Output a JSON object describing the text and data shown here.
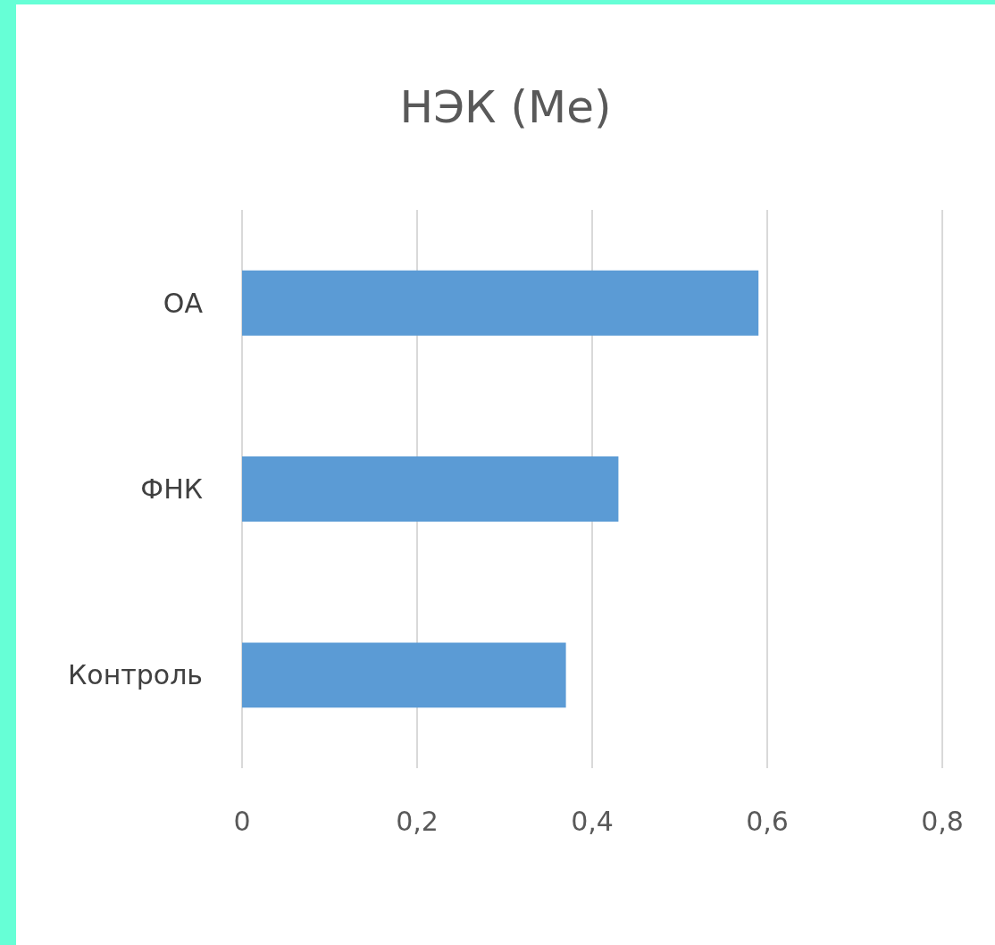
{
  "chart_data": {
    "type": "bar",
    "orientation": "horizontal",
    "title": "НЭК (Me)",
    "categories": [
      "ОА",
      "ФНК",
      "Контроль"
    ],
    "values": [
      0.59,
      0.43,
      0.37
    ],
    "color": "#5b9bd5",
    "xlim": [
      0,
      0.8
    ],
    "xticks": [
      0,
      {
        "value": 0.2,
        "label": "0,2"
      },
      {
        "value": 0.4,
        "label": "0,4"
      },
      {
        "value": 0.6,
        "label": "0,6"
      },
      {
        "value": 0.8,
        "label": "0,8"
      }
    ],
    "grid": "x"
  }
}
